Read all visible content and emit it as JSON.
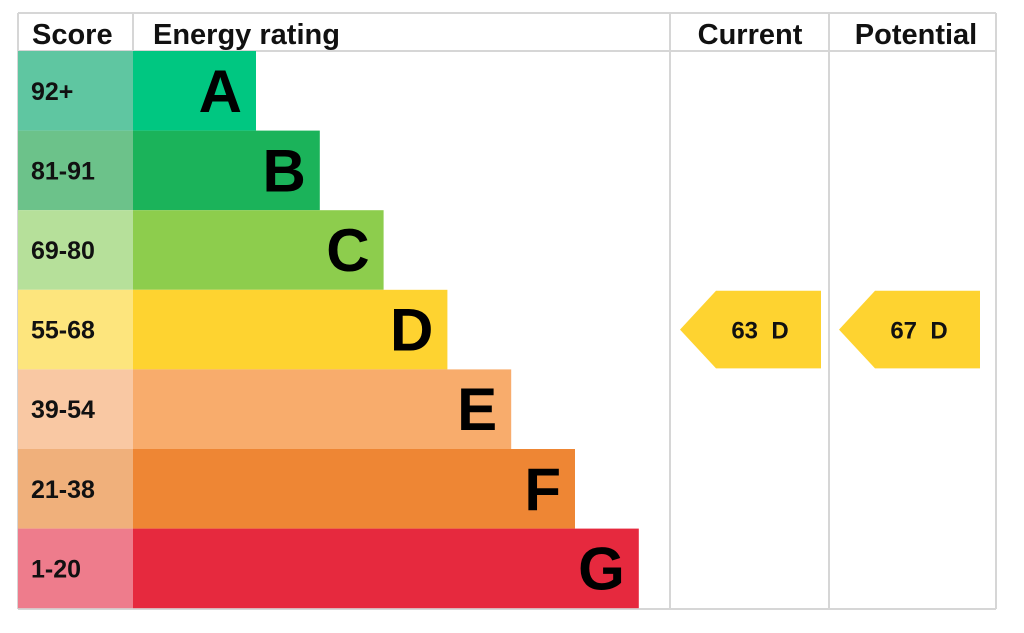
{
  "headers": {
    "score": "Score",
    "energy_rating": "Energy rating",
    "current": "Current",
    "potential": "Potential"
  },
  "chart_data": {
    "type": "bar",
    "title": "",
    "categories": [
      "A",
      "B",
      "C",
      "D",
      "E",
      "F",
      "G"
    ],
    "bands": [
      {
        "letter": "A",
        "score_range": "92+",
        "color": "#00c781",
        "score_color": "#5fc6a1"
      },
      {
        "letter": "B",
        "score_range": "81-91",
        "color": "#1bb35a",
        "score_color": "#6cc28a"
      },
      {
        "letter": "C",
        "score_range": "69-80",
        "color": "#8dcd4d",
        "score_color": "#b6e09a"
      },
      {
        "letter": "D",
        "score_range": "55-68",
        "color": "#fed330",
        "score_color": "#fde57d"
      },
      {
        "letter": "E",
        "score_range": "39-54",
        "color": "#f8ac6c",
        "score_color": "#f9c8a3"
      },
      {
        "letter": "F",
        "score_range": "21-38",
        "color": "#ee8634",
        "score_color": "#f0b07b"
      },
      {
        "letter": "G",
        "score_range": "1-20",
        "color": "#e6293e",
        "score_color": "#ee7c8c"
      }
    ],
    "current": {
      "score": 63,
      "band": "D",
      "label": "63  D",
      "color": "#fed330"
    },
    "potential": {
      "score": 67,
      "band": "D",
      "label": "67  D",
      "color": "#fed330"
    }
  }
}
